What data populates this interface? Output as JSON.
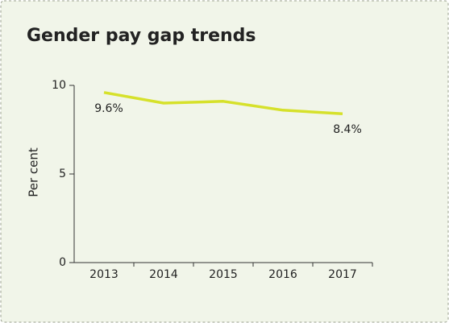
{
  "chart_data": {
    "type": "line",
    "title": "Gender pay gap trends",
    "y_label": "Per cent",
    "categories": [
      "2013",
      "2014",
      "2015",
      "2016",
      "2017"
    ],
    "series": [
      {
        "name": "Gender pay gap",
        "color": "#d6e12b",
        "values": [
          9.6,
          9.0,
          9.1,
          8.6,
          8.4
        ],
        "value_labels": [
          "9.6%",
          null,
          null,
          null,
          "8.4%"
        ]
      }
    ],
    "ylim": [
      0,
      10
    ],
    "yticks": [
      0,
      5,
      10
    ],
    "grid": false
  }
}
